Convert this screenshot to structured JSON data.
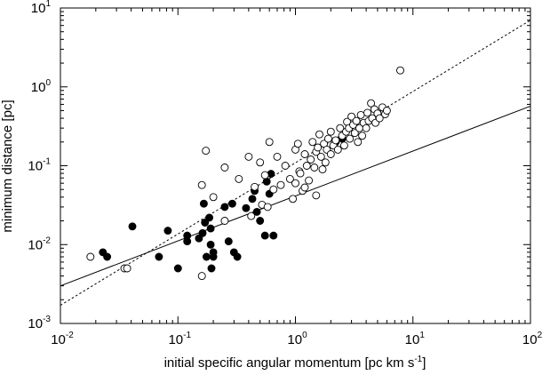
{
  "chart_data": {
    "type": "scatter",
    "x_scale": "log",
    "y_scale": "log",
    "xlim": [
      0.01,
      100
    ],
    "ylim": [
      0.001,
      10
    ],
    "xlabel": "initial specific angular momentum [pc km s",
    "xlabel_sup": "-1",
    "xlabel_tail": "]",
    "ylabel": "minimum distance [pc]",
    "x_ticks": [
      {
        "base": "10",
        "exp": "-2",
        "value": 0.01
      },
      {
        "base": "10",
        "exp": "-1",
        "value": 0.1
      },
      {
        "base": "10",
        "exp": "0",
        "value": 1
      },
      {
        "base": "10",
        "exp": "1",
        "value": 10
      },
      {
        "base": "10",
        "exp": "2",
        "value": 100
      }
    ],
    "y_ticks": [
      {
        "base": "10",
        "exp": "-3",
        "value": 0.001
      },
      {
        "base": "10",
        "exp": "-2",
        "value": 0.01
      },
      {
        "base": "10",
        "exp": "-1",
        "value": 0.1
      },
      {
        "base": "10",
        "exp": "0",
        "value": 1
      },
      {
        "base": "10",
        "exp": "1",
        "value": 10
      }
    ],
    "lines": [
      {
        "style": "solid",
        "points": [
          [
            0.01,
            0.003
          ],
          [
            100,
            0.57
          ]
        ]
      },
      {
        "style": "dotted",
        "points": [
          [
            0.01,
            0.0017
          ],
          [
            100,
            7.0
          ]
        ]
      }
    ],
    "series": [
      {
        "marker": "filled-circle",
        "points": [
          [
            0.023,
            0.008
          ],
          [
            0.025,
            0.007
          ],
          [
            0.041,
            0.017
          ],
          [
            0.069,
            0.007
          ],
          [
            0.082,
            0.015
          ],
          [
            0.1,
            0.005
          ],
          [
            0.12,
            0.013
          ],
          [
            0.12,
            0.011
          ],
          [
            0.151,
            0.012
          ],
          [
            0.162,
            0.014
          ],
          [
            0.166,
            0.033
          ],
          [
            0.17,
            0.019
          ],
          [
            0.175,
            0.007
          ],
          [
            0.185,
            0.022
          ],
          [
            0.19,
            0.016
          ],
          [
            0.19,
            0.01
          ],
          [
            0.193,
            0.005
          ],
          [
            0.2,
            0.007
          ],
          [
            0.2,
            0.008
          ],
          [
            0.25,
            0.03
          ],
          [
            0.27,
            0.011
          ],
          [
            0.29,
            0.033
          ],
          [
            0.3,
            0.008
          ],
          [
            0.32,
            0.007
          ],
          [
            0.38,
            0.029
          ],
          [
            0.43,
            0.038
          ],
          [
            0.45,
            0.048
          ],
          [
            0.47,
            0.026
          ],
          [
            0.5,
            0.02
          ],
          [
            0.55,
            0.013
          ],
          [
            0.57,
            0.063
          ],
          [
            0.6,
            0.044
          ],
          [
            0.62,
            0.079
          ],
          [
            0.65,
            0.013
          ],
          [
            2.2,
            0.2
          ],
          [
            2.5,
            0.22
          ]
        ]
      },
      {
        "marker": "open-circle",
        "points": [
          [
            0.018,
            0.007
          ],
          [
            0.035,
            0.005
          ],
          [
            0.037,
            0.005
          ],
          [
            0.16,
            0.004
          ],
          [
            0.16,
            0.057
          ],
          [
            0.173,
            0.155
          ],
          [
            0.2,
            0.04
          ],
          [
            0.25,
            0.02
          ],
          [
            0.25,
            0.095
          ],
          [
            0.33,
            0.068
          ],
          [
            0.4,
            0.13
          ],
          [
            0.42,
            0.023
          ],
          [
            0.45,
            0.054
          ],
          [
            0.5,
            0.11
          ],
          [
            0.52,
            0.032
          ],
          [
            0.55,
            0.076
          ],
          [
            0.58,
            0.03
          ],
          [
            0.6,
            0.2
          ],
          [
            0.65,
            0.05
          ],
          [
            0.7,
            0.13
          ],
          [
            0.75,
            0.057
          ],
          [
            0.82,
            0.1
          ],
          [
            0.9,
            0.068
          ],
          [
            0.95,
            0.038
          ],
          [
            1.0,
            0.06
          ],
          [
            1.0,
            0.16
          ],
          [
            1.05,
            0.19
          ],
          [
            1.08,
            0.085
          ],
          [
            1.1,
            0.08
          ],
          [
            1.15,
            0.048
          ],
          [
            1.2,
            0.14
          ],
          [
            1.2,
            0.053
          ],
          [
            1.25,
            0.1
          ],
          [
            1.3,
            0.065
          ],
          [
            1.35,
            0.12
          ],
          [
            1.4,
            0.2
          ],
          [
            1.45,
            0.095
          ],
          [
            1.5,
            0.15
          ],
          [
            1.5,
            0.042
          ],
          [
            1.55,
            0.17
          ],
          [
            1.6,
            0.25
          ],
          [
            1.65,
            0.13
          ],
          [
            1.7,
            0.09
          ],
          [
            1.75,
            0.19
          ],
          [
            1.8,
            0.11
          ],
          [
            1.85,
            0.16
          ],
          [
            1.9,
            0.22
          ],
          [
            2.0,
            0.14
          ],
          [
            2.0,
            0.27
          ],
          [
            2.1,
            0.18
          ],
          [
            2.2,
            0.21
          ],
          [
            2.3,
            0.16
          ],
          [
            2.4,
            0.3
          ],
          [
            2.5,
            0.24
          ],
          [
            2.6,
            0.18
          ],
          [
            2.7,
            0.27
          ],
          [
            2.75,
            0.36
          ],
          [
            2.85,
            0.3
          ],
          [
            2.9,
            0.22
          ],
          [
            3.0,
            0.42
          ],
          [
            3.1,
            0.33
          ],
          [
            3.2,
            0.26
          ],
          [
            3.3,
            0.37
          ],
          [
            3.4,
            0.2
          ],
          [
            3.5,
            0.3
          ],
          [
            3.6,
            0.44
          ],
          [
            3.7,
            0.24
          ],
          [
            3.8,
            0.35
          ],
          [
            4.0,
            0.3
          ],
          [
            4.1,
            0.47
          ],
          [
            4.2,
            0.37
          ],
          [
            4.4,
            0.62
          ],
          [
            4.5,
            0.4
          ],
          [
            4.7,
            0.52
          ],
          [
            4.8,
            0.35
          ],
          [
            5.0,
            0.46
          ],
          [
            5.2,
            0.4
          ],
          [
            5.5,
            0.55
          ],
          [
            5.8,
            0.45
          ],
          [
            6.0,
            0.5
          ],
          [
            7.8,
            1.62
          ]
        ]
      }
    ]
  }
}
